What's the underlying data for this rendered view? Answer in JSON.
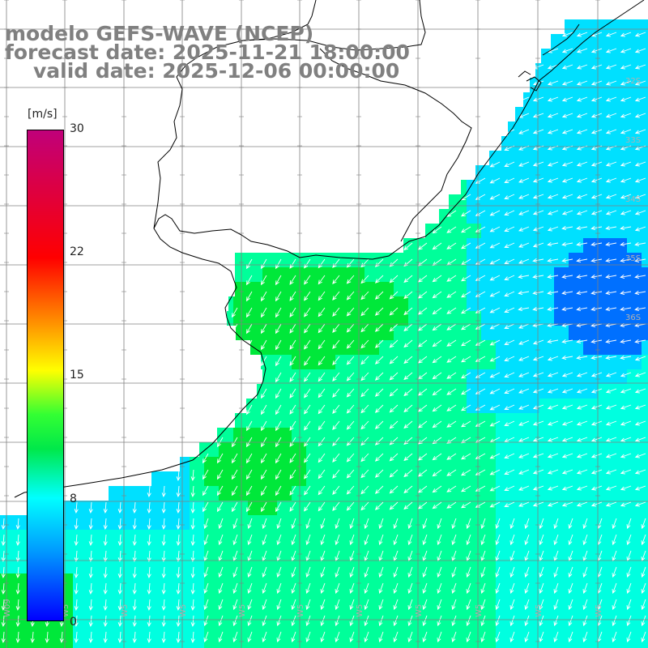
{
  "title": {
    "line1": "modelo GEFS-WAVE (NCEP)",
    "line2": "forecast date: 2025-11-21 18:00:00",
    "line3": "valid date: 2025-12-06 00:00:00"
  },
  "colorbar": {
    "unit": "[m/s]",
    "ticks": [
      {
        "label": "30",
        "value": 30
      },
      {
        "label": "22",
        "value": 22
      },
      {
        "label": "15",
        "value": 15
      },
      {
        "label": "8",
        "value": 8
      },
      {
        "label": "0",
        "value": 0
      }
    ],
    "colors": [
      "#c0007a",
      "#ff0000",
      "#ff9900",
      "#ffff00",
      "#33ff33",
      "#00e84a",
      "#00ffff",
      "#0099ff",
      "#0000ff"
    ]
  },
  "map": {
    "land_color": "#ffffff",
    "ocean_colors": {
      "strong": "#00e83a",
      "medium": "#00ff9a",
      "light": "#00ffe0",
      "weak": "#00e0ff",
      "calm": "#0070ff"
    },
    "lat_labels": [
      "32S",
      "33S",
      "34S",
      "35S",
      "36S"
    ],
    "lon_labels": [
      "W09",
      "W5",
      "W5",
      "W5",
      "W5",
      "W5",
      "W5",
      "W5",
      "W5",
      "W5",
      "W5"
    ],
    "arrow_color": "#ffffff",
    "grid_color": "#808080"
  }
}
